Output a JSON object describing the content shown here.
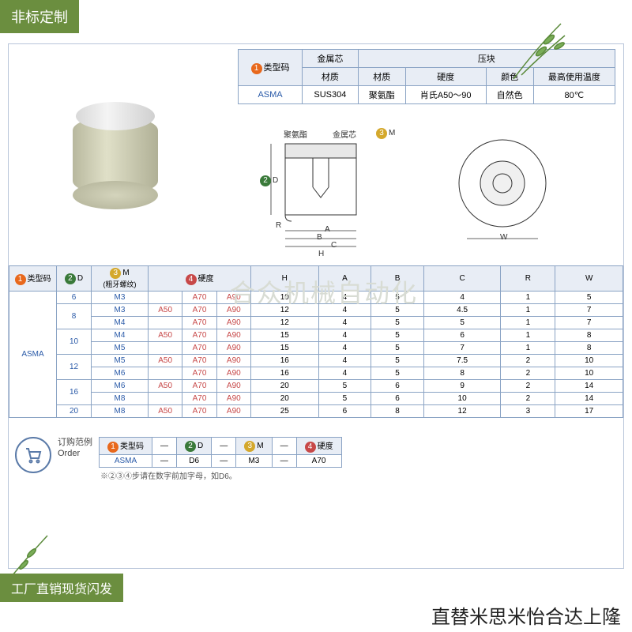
{
  "badges": {
    "top": "非标定制",
    "bottom": "工厂直销现货闪发",
    "tagline": "直替米思米怡合达上隆"
  },
  "watermark": "合众机械自动化",
  "specTable": {
    "head1": {
      "typeCode": "类型码",
      "metalCore": "金属芯",
      "block": "压块"
    },
    "head2": {
      "material1": "材质",
      "material2": "材质",
      "hardness": "硬度",
      "color": "颜色",
      "temp": "最高使用温度"
    },
    "row": {
      "code": "ASMA",
      "mat1": "SUS304",
      "mat2": "聚氨酯",
      "hard": "肖氏A50～90",
      "col": "自然色",
      "tmp": "80℃"
    }
  },
  "diagLabels": {
    "poly": "聚氨酯",
    "core": "金属芯",
    "M": "M",
    "D": "D",
    "R": "R",
    "A": "A",
    "B": "B",
    "C": "C",
    "H": "H",
    "W": "W"
  },
  "mainTable": {
    "headers": {
      "typeCode": "类型码",
      "D": "D",
      "M": "M",
      "Msub": "(粗牙螺纹)",
      "hardness": "硬度",
      "H": "H",
      "A": "A",
      "B": "B",
      "C": "C",
      "R": "R",
      "W": "W"
    },
    "typeCode": "ASMA",
    "rows": [
      {
        "D": "6",
        "M": "M3",
        "hard": [
          "",
          "A70",
          "A90"
        ],
        "H": "10",
        "A": "4",
        "B": "5",
        "C": "4",
        "R": "1",
        "W": "5"
      },
      {
        "D": "8",
        "M": "M3",
        "hard": [
          "A50",
          "A70",
          "A90"
        ],
        "H": "12",
        "A": "4",
        "B": "5",
        "C": "4.5",
        "R": "1",
        "W": "7"
      },
      {
        "D": "",
        "M": "M4",
        "hard": [
          "",
          "A70",
          "A90"
        ],
        "H": "12",
        "A": "4",
        "B": "5",
        "C": "5",
        "R": "1",
        "W": "7"
      },
      {
        "D": "10",
        "M": "M4",
        "hard": [
          "A50",
          "A70",
          "A90"
        ],
        "H": "15",
        "A": "4",
        "B": "5",
        "C": "6",
        "R": "1",
        "W": "8"
      },
      {
        "D": "",
        "M": "M5",
        "hard": [
          "",
          "A70",
          "A90"
        ],
        "H": "15",
        "A": "4",
        "B": "5",
        "C": "7",
        "R": "1",
        "W": "8"
      },
      {
        "D": "12",
        "M": "M5",
        "hard": [
          "A50",
          "A70",
          "A90"
        ],
        "H": "16",
        "A": "4",
        "B": "5",
        "C": "7.5",
        "R": "2",
        "W": "10"
      },
      {
        "D": "",
        "M": "M6",
        "hard": [
          "",
          "A70",
          "A90"
        ],
        "H": "16",
        "A": "4",
        "B": "5",
        "C": "8",
        "R": "2",
        "W": "10"
      },
      {
        "D": "16",
        "M": "M6",
        "hard": [
          "A50",
          "A70",
          "A90"
        ],
        "H": "20",
        "A": "5",
        "B": "6",
        "C": "9",
        "R": "2",
        "W": "14"
      },
      {
        "D": "",
        "M": "M8",
        "hard": [
          "",
          "A70",
          "A90"
        ],
        "H": "20",
        "A": "5",
        "B": "6",
        "C": "10",
        "R": "2",
        "W": "14"
      },
      {
        "D": "20",
        "M": "M8",
        "hard": [
          "A50",
          "A70",
          "A90"
        ],
        "H": "25",
        "A": "6",
        "B": "8",
        "C": "12",
        "R": "3",
        "W": "17"
      }
    ]
  },
  "order": {
    "label1": "订购范例",
    "label2": "Order",
    "head": {
      "c1": "类型码",
      "c2": "D",
      "c3": "M",
      "c4": "硬度"
    },
    "row": {
      "c1": "ASMA",
      "c2": "D6",
      "c3": "M3",
      "c4": "A70"
    },
    "footnote": "※②③④步请在数字前加字母，如D6。"
  },
  "colors": {
    "badge": "#6b8e3f",
    "border": "#8aa3c4",
    "headerBg": "#e8edf5",
    "link": "#2a5aa8",
    "orange": "#e8681c",
    "green": "#3a7a3a",
    "yellow": "#d4a82c",
    "red": "#c74848"
  }
}
